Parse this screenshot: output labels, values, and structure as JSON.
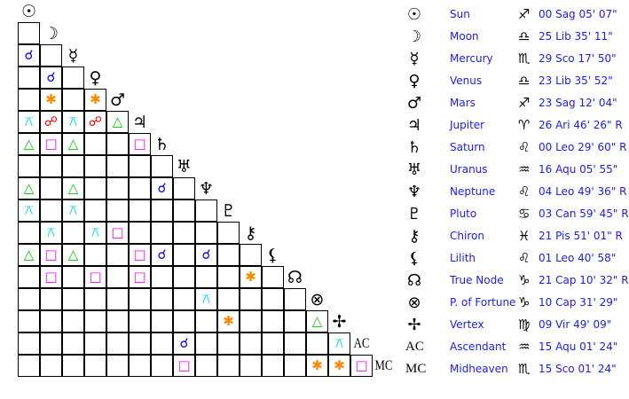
{
  "planets": [
    {
      "glyph": "☉",
      "name": "Sun",
      "sign_glyph": "♐",
      "position": "00 Sag 05' 07\""
    },
    {
      "glyph": "☽",
      "name": "Moon",
      "sign_glyph": "♎",
      "position": "25 Lib 35' 11\""
    },
    {
      "glyph": "☿",
      "name": "Mercury",
      "sign_glyph": "♏",
      "position": "29 Sco 17' 50\""
    },
    {
      "glyph": "♀",
      "name": "Venus",
      "sign_glyph": "♎",
      "position": "23 Lib 35' 52\""
    },
    {
      "glyph": "♂",
      "name": "Mars",
      "sign_glyph": "♐",
      "position": "23 Sag 12' 04\""
    },
    {
      "glyph": "♃",
      "name": "Jupiter",
      "sign_glyph": "♈",
      "position": "26 Ari 46' 26\" R"
    },
    {
      "glyph": "♄",
      "name": "Saturn",
      "sign_glyph": "♌",
      "position": "00 Leo 29' 60\" R"
    },
    {
      "glyph": "♅",
      "name": "Uranus",
      "sign_glyph": "♒",
      "position": "16 Aqu 05' 55\""
    },
    {
      "glyph": "♆",
      "name": "Neptune",
      "sign_glyph": "♌",
      "position": "04 Leo 49' 36\" R"
    },
    {
      "glyph": "♇",
      "name": "Pluto",
      "sign_glyph": "♋",
      "position": "03 Can 59' 45\" R"
    },
    {
      "glyph": "⚷",
      "name": "Chiron",
      "sign_glyph": "♓",
      "position": "21 Pis 51' 01\" R"
    },
    {
      "glyph": "⚸",
      "name": "Lilith",
      "sign_glyph": "♌",
      "position": "01 Leo 40' 58\""
    },
    {
      "glyph": "☊",
      "name": "True Node",
      "sign_glyph": "♑",
      "position": "21 Cap 10' 32\" R"
    },
    {
      "glyph": "⊗",
      "name": "P. of Fortune",
      "sign_glyph": "♑",
      "position": "10 Cap 31' 29\""
    },
    {
      "glyph": "✢",
      "name": "Vertex",
      "sign_glyph": "♍",
      "position": "09 Vir 49' 09\""
    },
    {
      "glyph": "AC",
      "name": "Ascendant",
      "sign_glyph": "♒",
      "position": "15 Aqu 01' 24\""
    },
    {
      "glyph": "MC",
      "name": "Midheaven",
      "sign_glyph": "♏",
      "position": "15 Sco 01' 24\""
    }
  ],
  "aspect_types": {
    "C": {
      "name": "conjunction",
      "glyph": "☌",
      "color": "#0000ff"
    },
    "X": {
      "name": "sextile",
      "glyph": "✱",
      "color": "#ff8800"
    },
    "S": {
      "name": "square",
      "glyph": "□",
      "color": "#ff00ff"
    },
    "T": {
      "name": "trine",
      "glyph": "△",
      "color": "#00cc00"
    },
    "O": {
      "name": "opposition",
      "glyph": "☍",
      "color": "#ff0000"
    },
    "Q": {
      "name": "quincunx",
      "glyph": "⚻",
      "color": "#00dddd"
    }
  },
  "aspect_grid": [
    [
      ""
    ],
    [
      "C",
      ""
    ],
    [
      "",
      "C",
      ""
    ],
    [
      "",
      "X",
      "",
      "X"
    ],
    [
      "Q",
      "O",
      "Q",
      "O",
      "T"
    ],
    [
      "T",
      "S",
      "T",
      "",
      "",
      "S"
    ],
    [
      "",
      "",
      "",
      "",
      "",
      "",
      ""
    ],
    [
      "T",
      "",
      "T",
      "",
      "",
      "",
      "C",
      ""
    ],
    [
      "Q",
      "",
      "Q",
      "",
      "",
      "",
      "",
      "",
      ""
    ],
    [
      "",
      "Q",
      "",
      "Q",
      "S",
      "",
      "",
      "",
      "",
      ""
    ],
    [
      "T",
      "S",
      "T",
      "",
      "",
      "S",
      "C",
      "",
      "C",
      "",
      ""
    ],
    [
      "",
      "S",
      "",
      "S",
      "",
      "S",
      "",
      "",
      "",
      "",
      "X",
      ""
    ],
    [
      "",
      "",
      "",
      "",
      "",
      "",
      "",
      "",
      "Q",
      "",
      "",
      "",
      ""
    ],
    [
      "",
      "",
      "",
      "",
      "",
      "",
      "",
      "",
      "",
      "X",
      "",
      "",
      "",
      "T"
    ],
    [
      "",
      "",
      "",
      "",
      "",
      "",
      "",
      "C",
      "",
      "",
      "",
      "",
      "",
      "",
      "Q"
    ],
    [
      "",
      "",
      "",
      "",
      "",
      "",
      "",
      "S",
      "",
      "",
      "",
      "",
      "",
      "X",
      "X",
      "S"
    ]
  ]
}
